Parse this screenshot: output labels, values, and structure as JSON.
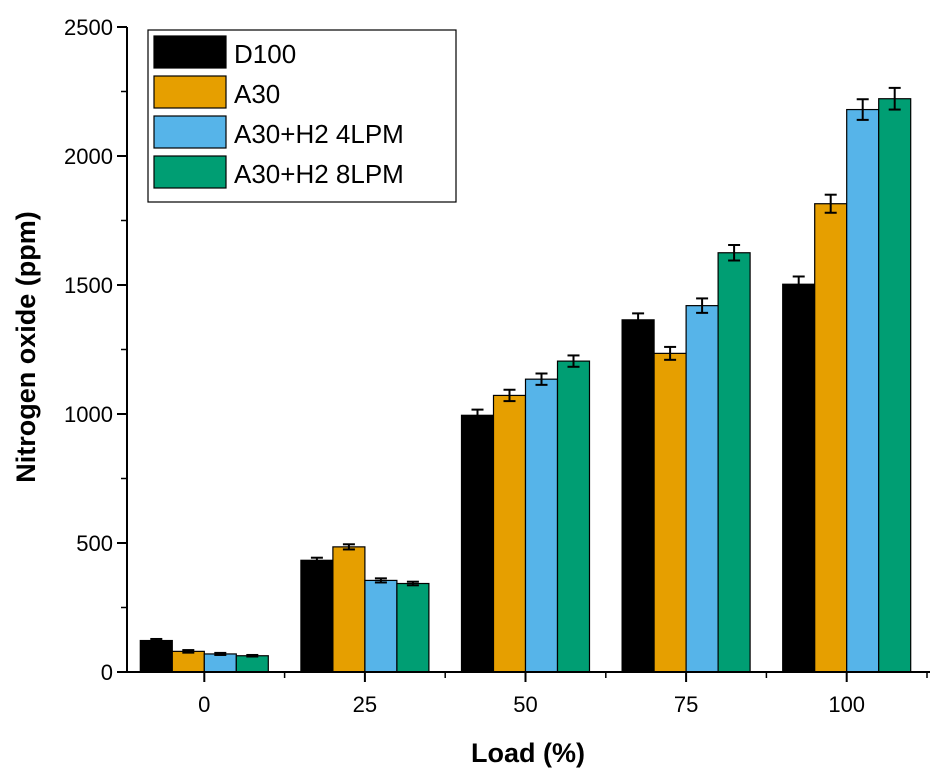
{
  "chart_data": {
    "type": "bar",
    "title": "",
    "xlabel": "Load (%)",
    "ylabel": "Nitrogen oxide (ppm)",
    "categories": [
      "0",
      "25",
      "50",
      "75",
      "100"
    ],
    "ylim": [
      0,
      2500
    ],
    "yticks": [
      0,
      500,
      1000,
      1500,
      2000,
      2500
    ],
    "legend_position": "top-left",
    "grid": false,
    "series": [
      {
        "name": "D100",
        "color": "#000000",
        "values": [
          122,
          433,
          995,
          1365,
          1503
        ],
        "errors": [
          6,
          10,
          22,
          25,
          30
        ]
      },
      {
        "name": "A30",
        "color": "#e69f00",
        "values": [
          80,
          485,
          1072,
          1235,
          1815
        ],
        "errors": [
          5,
          10,
          22,
          25,
          35
        ]
      },
      {
        "name": "A30+H2 4LPM",
        "color": "#56b4e9",
        "values": [
          70,
          355,
          1135,
          1420,
          2180
        ],
        "errors": [
          4,
          8,
          22,
          28,
          40
        ]
      },
      {
        "name": "A30+H2 8LPM",
        "color": "#009e73",
        "values": [
          63,
          343,
          1205,
          1625,
          2222
        ],
        "errors": [
          3,
          7,
          22,
          30,
          42
        ]
      }
    ]
  }
}
